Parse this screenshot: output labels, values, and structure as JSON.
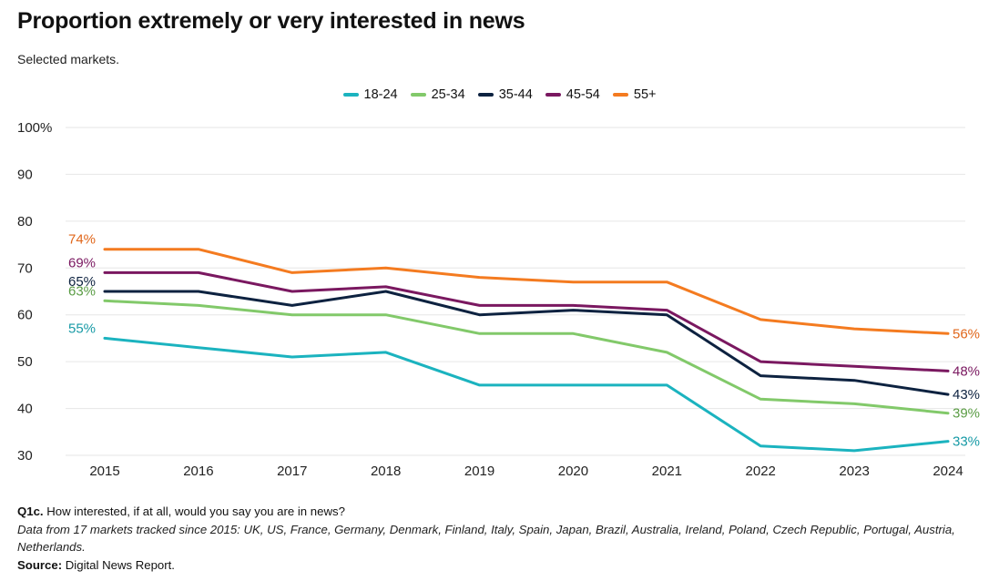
{
  "header": {
    "title": "Proportion extremely or very interested in news",
    "subtitle": "Selected markets."
  },
  "footer": {
    "question_label": "Q1c.",
    "question_text": "How interested, if at all, would you say you are in news?",
    "note": "Data from 17 markets tracked since 2015: UK, US, France, Germany, Denmark, Finland, Italy, Spain, Japan, Brazil, Australia, Ireland, Poland, Czech Republic, Portugal, Austria, Netherlands.",
    "source_label": "Source:",
    "source_text": "Digital News Report."
  },
  "chart_data": {
    "type": "line",
    "title": "Proportion extremely or very interested in news",
    "subtitle": "Selected markets.",
    "xlabel": "",
    "ylabel": "",
    "x": [
      "2015",
      "2016",
      "2017",
      "2018",
      "2019",
      "2020",
      "2021",
      "2022",
      "2023",
      "2024"
    ],
    "ylim": [
      30,
      100
    ],
    "yticks": [
      30,
      40,
      50,
      60,
      70,
      80,
      90,
      100
    ],
    "ytick_labels": [
      "30",
      "40",
      "50",
      "60",
      "70",
      "80",
      "90",
      "100%"
    ],
    "grid": "horizontal",
    "legend_position": "top-center",
    "series": [
      {
        "name": "18-24",
        "color": "#1bb3bf",
        "label_color": "#179aa6",
        "values": [
          55,
          53,
          51,
          52,
          45,
          45,
          45,
          32,
          31,
          33
        ],
        "start_label": "55%",
        "end_label": "33%"
      },
      {
        "name": "25-34",
        "color": "#82c96a",
        "label_color": "#5a9c44",
        "values": [
          63,
          62,
          60,
          60,
          56,
          56,
          52,
          42,
          41,
          39
        ],
        "start_label": "63%",
        "end_label": "39%"
      },
      {
        "name": "35-44",
        "color": "#0d2240",
        "label_color": "#0d2240",
        "values": [
          65,
          65,
          62,
          65,
          60,
          61,
          60,
          47,
          46,
          43
        ],
        "start_label": "65%",
        "end_label": "43%"
      },
      {
        "name": "45-54",
        "color": "#7a1860",
        "label_color": "#7a1860",
        "values": [
          69,
          69,
          65,
          66,
          62,
          62,
          61,
          50,
          49,
          48
        ],
        "start_label": "69%",
        "end_label": "48%"
      },
      {
        "name": "55+",
        "color": "#f47b20",
        "label_color": "#e0661a",
        "values": [
          74,
          74,
          69,
          70,
          68,
          67,
          67,
          59,
          57,
          56
        ],
        "start_label": "74%",
        "end_label": "56%"
      }
    ]
  }
}
